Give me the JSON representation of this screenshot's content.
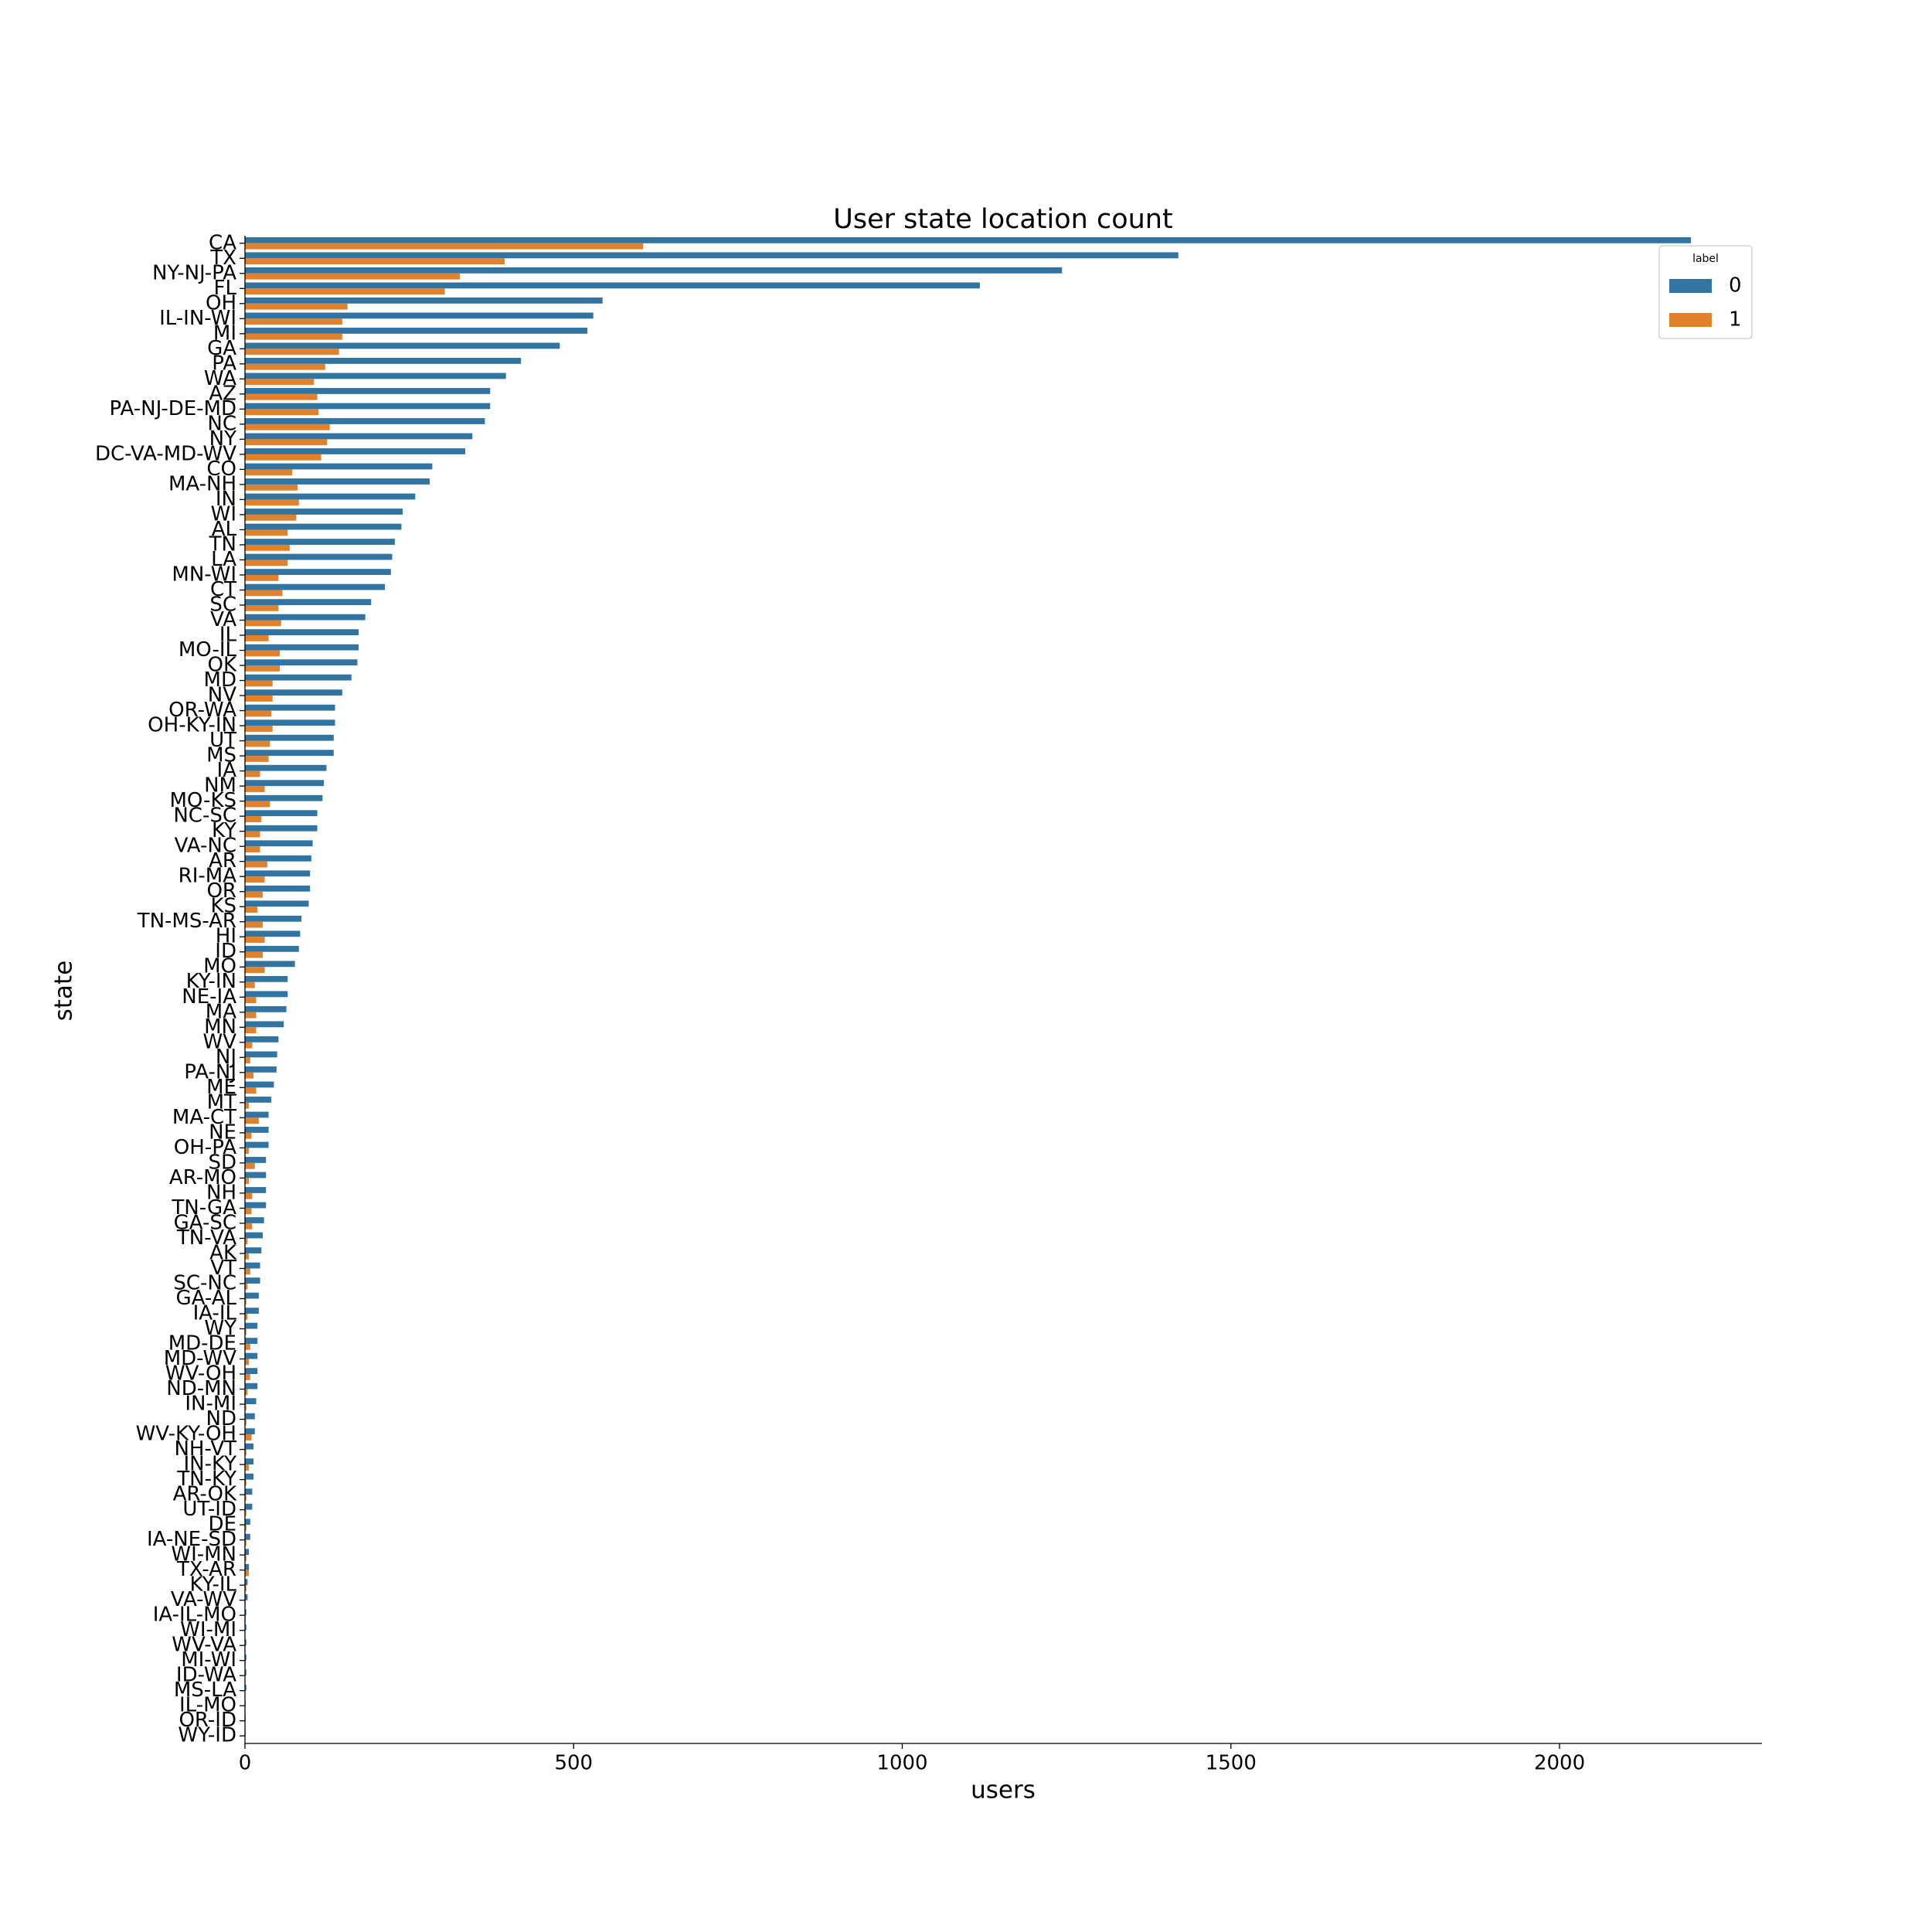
{
  "chart_data": {
    "type": "bar",
    "title": "User state location count",
    "x_label": "users",
    "y_label": "state",
    "categories": [
      "CA",
      "TX",
      "NY-NJ-PA",
      "FL",
      "OH",
      "IL-IN-WI",
      "MI",
      "GA",
      "PA",
      "WA",
      "AZ",
      "PA-NJ-DE-MD",
      "NC",
      "NY",
      "DC-VA-MD-WV",
      "CO",
      "MA-NH",
      "IN",
      "WI",
      "AL",
      "TN",
      "LA",
      "MN-WI",
      "CT",
      "SC",
      "VA",
      "IL",
      "MO-IL",
      "OK",
      "MD",
      "NV",
      "OR-WA",
      "OH-KY-IN",
      "UT",
      "MS",
      "IA",
      "NM",
      "MO-KS",
      "NC-SC",
      "KY",
      "VA-NC",
      "AR",
      "RI-MA",
      "OR",
      "KS",
      "TN-MS-AR",
      "HI",
      "ID",
      "MO",
      "KY-IN",
      "NE-IA",
      "MA",
      "MN",
      "WV",
      "NJ",
      "PA-NJ",
      "ME",
      "MT",
      "MA-CT",
      "NE",
      "OH-PA",
      "SD",
      "AR-MO",
      "NH",
      "TN-GA",
      "GA-SC",
      "TN-VA",
      "AK",
      "VT",
      "SC-NC",
      "GA-AL",
      "IA-IL",
      "WY",
      "MD-DE",
      "MD-WV",
      "WV-OH",
      "ND-MN",
      "IN-MI",
      "ND",
      "WV-KY-OH",
      "NH-VT",
      "IN-KY",
      "TN-KY",
      "AR-OK",
      "UT-ID",
      "DE",
      "IA-NE-SD",
      "WI-MN",
      "TX-AR",
      "KY-IL",
      "VA-WV",
      "IA-IL-MO",
      "WI-MI",
      "WV-VA",
      "MI-WI",
      "ID-WA",
      "MS-LA",
      "IL-MO",
      "OR-ID",
      "WY-ID"
    ],
    "series": [
      {
        "name": "0",
        "color": "#3274a1",
        "values": [
          2200,
          1420,
          1243,
          1118,
          544,
          530,
          521,
          479,
          420,
          397,
          373,
          373,
          365,
          346,
          335,
          285,
          281,
          259,
          240,
          238,
          228,
          224,
          222,
          213,
          192,
          183,
          173,
          173,
          171,
          162,
          148,
          137,
          137,
          135,
          135,
          124,
          120,
          118,
          110,
          110,
          103,
          101,
          99,
          99,
          97,
          86,
          84,
          82,
          76,
          65,
          65,
          63,
          59,
          51,
          49,
          48,
          44,
          40,
          36,
          36,
          36,
          32,
          32,
          32,
          32,
          29,
          27,
          25,
          23,
          23,
          21,
          21,
          19,
          19,
          19,
          19,
          19,
          17,
          15,
          15,
          13,
          13,
          13,
          11,
          11,
          8,
          8,
          6,
          6,
          4,
          4,
          2,
          2,
          2,
          2,
          2,
          2,
          1,
          1,
          1
        ]
      },
      {
        "name": "1",
        "color": "#e1812c",
        "values": [
          606,
          395,
          327,
          304,
          156,
          148,
          148,
          143,
          122,
          105,
          110,
          112,
          129,
          125,
          116,
          72,
          80,
          82,
          78,
          65,
          68,
          65,
          51,
          57,
          51,
          55,
          36,
          53,
          53,
          42,
          42,
          40,
          42,
          38,
          36,
          23,
          30,
          38,
          25,
          23,
          23,
          34,
          30,
          27,
          19,
          27,
          30,
          27,
          30,
          15,
          17,
          17,
          17,
          11,
          8,
          13,
          17,
          6,
          21,
          10,
          6,
          15,
          6,
          11,
          10,
          11,
          4,
          6,
          8,
          4,
          2,
          4,
          2,
          8,
          6,
          8,
          4,
          2,
          2,
          10,
          2,
          6,
          2,
          2,
          2,
          2,
          2,
          2,
          6,
          2,
          1,
          1,
          0,
          0,
          1,
          0,
          0,
          0,
          0,
          0
        ]
      }
    ],
    "legend_title": "label",
    "legend": "upper right",
    "xlim": [
      0,
      2308
    ],
    "xticks": [
      0,
      500,
      1000,
      1500,
      2000
    ]
  }
}
